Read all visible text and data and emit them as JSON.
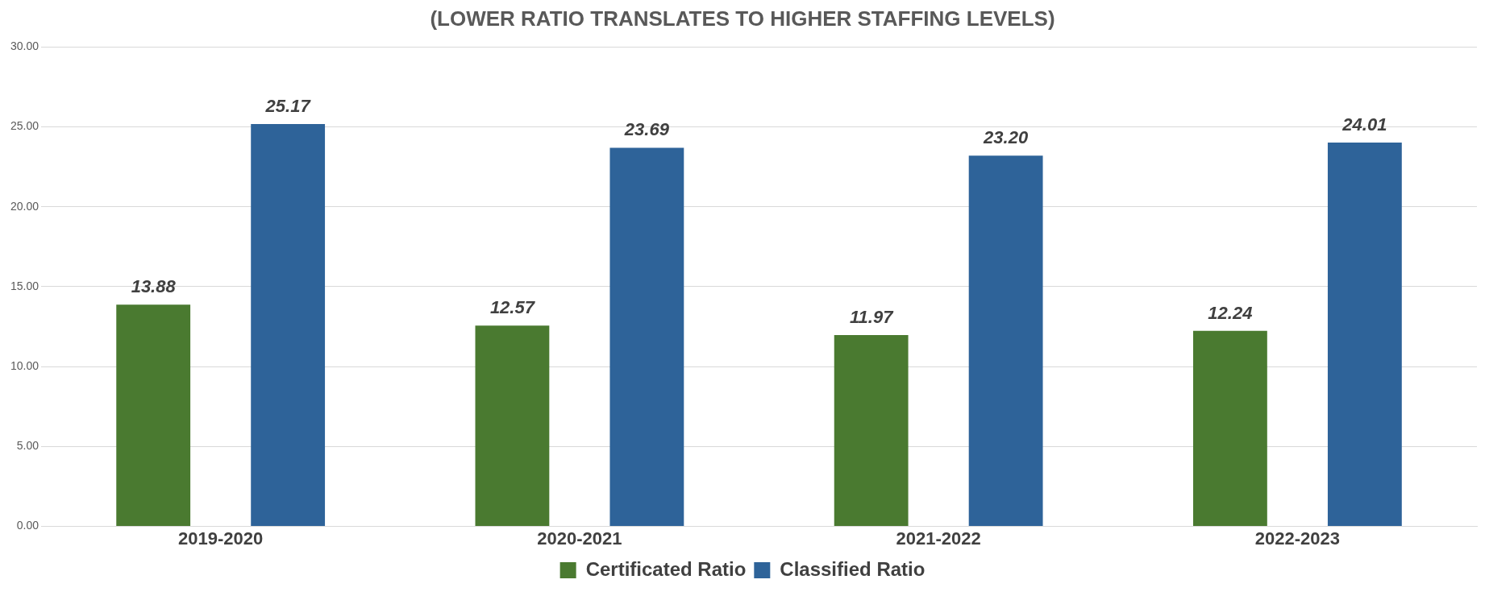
{
  "chart_data": {
    "type": "bar",
    "title": "(LOWER RATIO TRANSLATES TO HIGHER STAFFING LEVELS)",
    "categories": [
      "2019-2020",
      "2020-2021",
      "2021-2022",
      "2022-2023"
    ],
    "series": [
      {
        "name": "Certificated Ratio",
        "color": "#4a7a30",
        "values": [
          13.88,
          12.57,
          11.97,
          12.24
        ],
        "value_labels": [
          "13.88",
          "12.57",
          "11.97",
          "12.24"
        ]
      },
      {
        "name": "Classified Ratio",
        "color": "#2e6399",
        "values": [
          25.17,
          23.69,
          23.2,
          24.01
        ],
        "value_labels": [
          "25.17",
          "23.69",
          "23.20",
          "24.01"
        ]
      }
    ],
    "ylim": [
      0,
      30
    ],
    "yticks": [
      {
        "value": 0,
        "label": "0.00"
      },
      {
        "value": 5,
        "label": "5.00"
      },
      {
        "value": 10,
        "label": "10.00"
      },
      {
        "value": 15,
        "label": "15.00"
      },
      {
        "value": 20,
        "label": "20.00"
      },
      {
        "value": 25,
        "label": "25.00"
      },
      {
        "value": 30,
        "label": "30.00"
      }
    ],
    "grid": "y",
    "legend": "bottom"
  }
}
